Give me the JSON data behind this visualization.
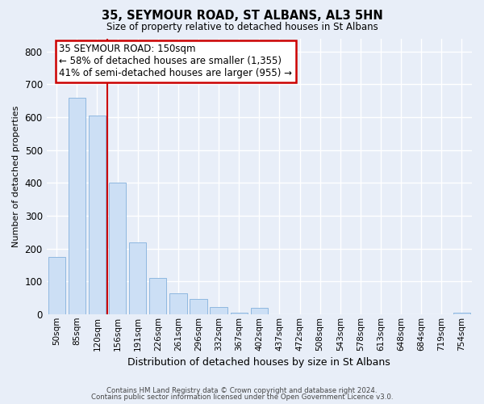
{
  "title": "35, SEYMOUR ROAD, ST ALBANS, AL3 5HN",
  "subtitle": "Size of property relative to detached houses in St Albans",
  "xlabel": "Distribution of detached houses by size in St Albans",
  "ylabel": "Number of detached properties",
  "bar_labels": [
    "50sqm",
    "85sqm",
    "120sqm",
    "156sqm",
    "191sqm",
    "226sqm",
    "261sqm",
    "296sqm",
    "332sqm",
    "367sqm",
    "402sqm",
    "437sqm",
    "472sqm",
    "508sqm",
    "543sqm",
    "578sqm",
    "613sqm",
    "648sqm",
    "684sqm",
    "719sqm",
    "754sqm"
  ],
  "bar_values": [
    175,
    660,
    605,
    400,
    218,
    110,
    63,
    46,
    22,
    5,
    18,
    0,
    0,
    0,
    0,
    0,
    0,
    0,
    0,
    0,
    5
  ],
  "bar_color": "#ccdff5",
  "bar_edge_color": "#8fb8e0",
  "vline_color": "#cc0000",
  "annotation_text": "35 SEYMOUR ROAD: 150sqm\n← 58% of detached houses are smaller (1,355)\n41% of semi-detached houses are larger (955) →",
  "annotation_box_color": "white",
  "annotation_box_edge": "#cc0000",
  "ylim": [
    0,
    840
  ],
  "yticks": [
    0,
    100,
    200,
    300,
    400,
    500,
    600,
    700,
    800
  ],
  "footer_line1": "Contains HM Land Registry data © Crown copyright and database right 2024.",
  "footer_line2": "Contains public sector information licensed under the Open Government Licence v3.0.",
  "bg_color": "#e8eef8",
  "plot_bg_color": "#e8eef8",
  "grid_color": "white"
}
